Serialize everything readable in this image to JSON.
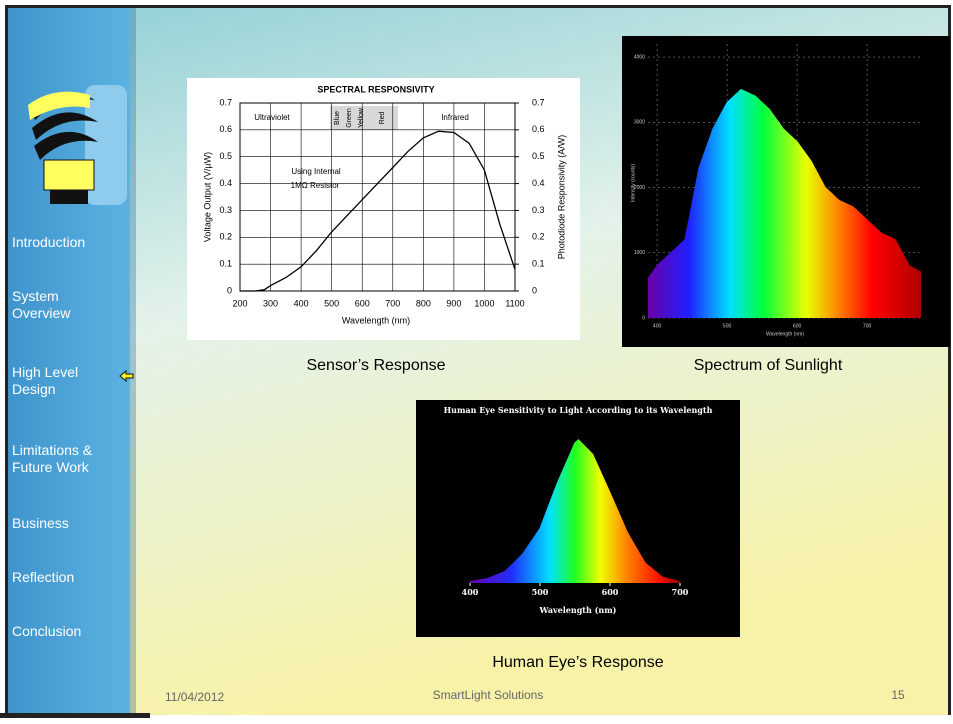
{
  "sidebar": {
    "items": [
      "Introduction",
      "System Overview",
      "High Level Design",
      "Limitations & Future Work",
      "Business",
      "Reflection",
      "Conclusion"
    ]
  },
  "captions": [
    "Sensor’s Response",
    "Spectrum of Sunlight",
    "Human Eye’s Response"
  ],
  "footer": {
    "date": "11/04/2012",
    "company": "SmartLight Solutions",
    "page": "15"
  },
  "chart_data": [
    {
      "type": "line",
      "title": "SPECTRAL RESPONSIVITY",
      "xlabel": "Wavelength (nm)",
      "ylabel": "Voltage Output (V/µW)",
      "y2label": "Photodiode Responsivity (A/W)",
      "annotations": [
        "Ultraviolet",
        "Blue",
        "Green",
        "Yellow",
        "Red",
        "Infrared",
        "Using Internal",
        "1MΩ Resistor"
      ],
      "x": [
        200,
        250,
        280,
        300,
        350,
        400,
        450,
        500,
        550,
        600,
        650,
        700,
        750,
        800,
        850,
        900,
        950,
        1000,
        1050,
        1100
      ],
      "values": [
        0,
        0,
        0.005,
        0.02,
        0.05,
        0.09,
        0.15,
        0.22,
        0.28,
        0.34,
        0.4,
        0.46,
        0.52,
        0.57,
        0.595,
        0.59,
        0.55,
        0.45,
        0.25,
        0.08
      ],
      "color": "#000000",
      "xlim": [
        200,
        1100
      ],
      "xticks": [
        200,
        300,
        400,
        500,
        600,
        700,
        800,
        900,
        1000,
        1100
      ],
      "ylim": [
        0,
        0.7
      ],
      "yticks": [
        0,
        0.1,
        0.2,
        0.3,
        0.4,
        0.5,
        0.6,
        0.7
      ],
      "y2lim": [
        0,
        0.7
      ],
      "y2ticks": [
        0,
        0.1,
        0.2,
        0.3,
        0.4,
        0.5,
        0.6,
        0.7
      ],
      "grid": true
    },
    {
      "type": "area",
      "xlabel": "Wavelength (nm)",
      "ylabel": "Intensity (counts)",
      "x": [
        387,
        400,
        420,
        440,
        460,
        480,
        500,
        520,
        540,
        560,
        580,
        600,
        620,
        640,
        660,
        680,
        700,
        720,
        740,
        760,
        777
      ],
      "values": [
        600,
        800,
        1000,
        1200,
        2300,
        2900,
        3300,
        3500,
        3400,
        3200,
        2900,
        2700,
        2400,
        2000,
        1800,
        1700,
        1500,
        1300,
        1200,
        800,
        700
      ],
      "xlim": [
        387,
        777
      ],
      "xticks": [
        400,
        500,
        600,
        700
      ],
      "ylim": [
        0,
        4200
      ],
      "yticks": [
        0,
        1000,
        2000,
        3000,
        4000
      ],
      "grid": true
    },
    {
      "type": "area",
      "title": "Human Eye Sensitivity to Light According to its Wavelength",
      "xlabel": "Wavelength (nm)",
      "x": [
        400,
        425,
        450,
        475,
        500,
        525,
        550,
        555,
        575,
        600,
        625,
        650,
        675,
        700
      ],
      "values": [
        1,
        3,
        8,
        20,
        38,
        70,
        98,
        100,
        90,
        63,
        35,
        14,
        4,
        1
      ],
      "xlim": [
        400,
        700
      ],
      "xticks": [
        400,
        500,
        600,
        700
      ],
      "ylim": [
        0,
        100
      ],
      "grid": false
    }
  ]
}
